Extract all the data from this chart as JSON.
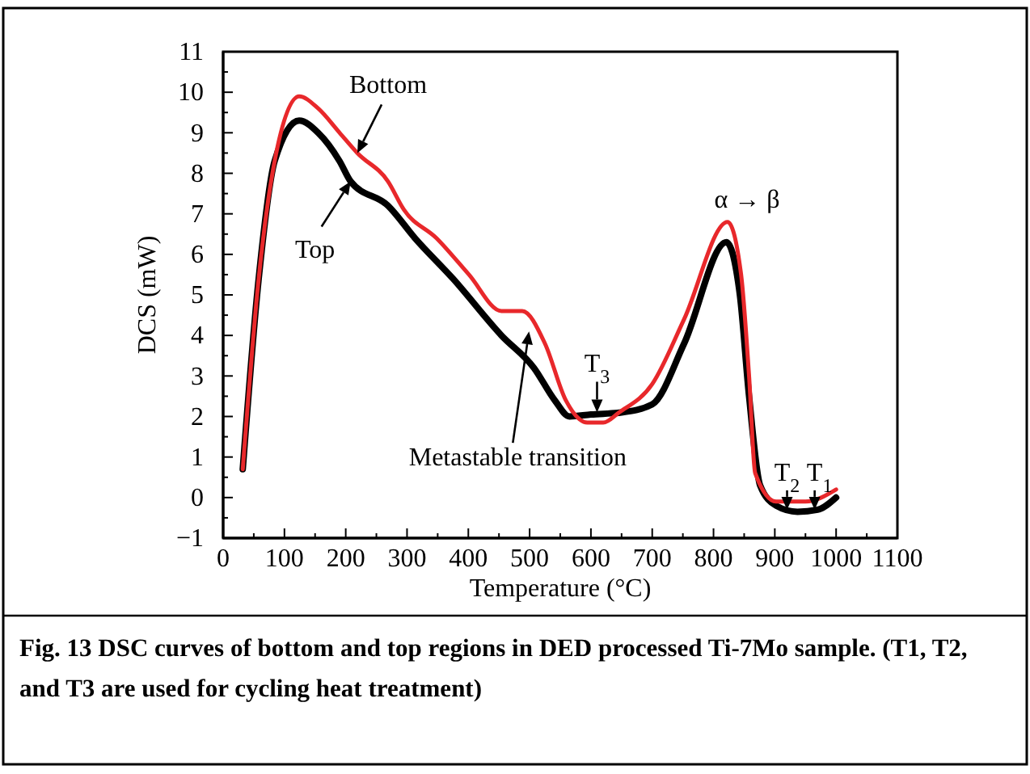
{
  "chart_data": {
    "type": "line",
    "xlabel": "Temperature (°C)",
    "ylabel": "DCS (mW)",
    "xlim": [
      0,
      1100
    ],
    "ylim": [
      -1,
      11
    ],
    "xticks": [
      0,
      {
        "value": 50,
        "label": null
      },
      100,
      {
        "value": 150,
        "label": null
      },
      200,
      {
        "value": 250,
        "label": null
      },
      300,
      {
        "value": 350,
        "label": null
      },
      400,
      {
        "value": 450,
        "label": null
      },
      500,
      {
        "value": 550,
        "label": null
      },
      600,
      {
        "value": 650,
        "label": null
      },
      700,
      {
        "value": 750,
        "label": null
      },
      800,
      {
        "value": 850,
        "label": null
      },
      900,
      {
        "value": 950,
        "label": null
      },
      1000,
      {
        "value": 1050,
        "label": null
      },
      1100
    ],
    "yticks": [
      -1,
      {
        "value": -0.5,
        "label": null
      },
      0,
      {
        "value": 0.5,
        "label": null
      },
      1,
      {
        "value": 1.5,
        "label": null
      },
      2,
      {
        "value": 2.5,
        "label": null
      },
      3,
      {
        "value": 3.5,
        "label": null
      },
      4,
      {
        "value": 4.5,
        "label": null
      },
      5,
      {
        "value": 5.5,
        "label": null
      },
      6,
      {
        "value": 6.5,
        "label": null
      },
      7,
      {
        "value": 7.5,
        "label": null
      },
      8,
      {
        "value": 8.5,
        "label": null
      },
      9,
      {
        "value": 9.5,
        "label": null
      },
      10,
      {
        "value": 10.5,
        "label": null
      },
      11
    ],
    "grid": false,
    "legend": "top left",
    "marker": "none",
    "line_style": "solid",
    "series": [
      {
        "name": "Bottom",
        "color": "#e8282b",
        "x": [
          32,
          58,
          84,
          124,
          155,
          190,
          219,
          269,
          295,
          348,
          401,
          454,
          488,
          525,
          559,
          594,
          620,
          646,
          700,
          752,
          823,
          845,
          858,
          868,
          902,
          950,
          1000
        ],
        "values": [
          0.7,
          5.4,
          8.3,
          9.9,
          9.6,
          9.0,
          8.5,
          7.8,
          7.1,
          6.4,
          5.5,
          4.6,
          4.6,
          3.8,
          2.4,
          1.85,
          1.85,
          2.1,
          2.8,
          4.4,
          6.8,
          5.5,
          3.0,
          0.6,
          -0.1,
          -0.1,
          0.2
        ]
      },
      {
        "name": "Top",
        "color": "#000000",
        "x": [
          32,
          58,
          84,
          124,
          155,
          190,
          208,
          269,
          313,
          375,
          454,
          507,
          541,
          565,
          600,
          650,
          700,
          752,
          821,
          843,
          858,
          876,
          902,
          937,
          970,
          1000
        ],
        "values": [
          0.7,
          5.4,
          8.3,
          9.3,
          9.0,
          8.3,
          7.8,
          7.2,
          6.4,
          5.4,
          4.0,
          3.2,
          2.4,
          2.0,
          2.05,
          2.1,
          2.3,
          3.8,
          6.3,
          5.0,
          2.5,
          0.3,
          -0.2,
          -0.35,
          -0.3,
          0
        ]
      }
    ],
    "annotations": [
      {
        "text": "α → β",
        "x": 823,
        "y": 6.8
      },
      {
        "text": "T$_{3}$",
        "x": 610,
        "y": 2.1
      },
      {
        "text": "Metastable transition",
        "x": 499,
        "y": 4.1
      },
      {
        "text": "T$_{2}$",
        "x": 920,
        "y": -0.3
      },
      {
        "text": "T$_{1}$",
        "x": 965,
        "y": -0.3
      },
      "Fig. 13 DSC curves of bottom and top regions in DED processed Ti-7Mo sample. (T1, T2, and T3 are used for cycling heat treatment)"
    ]
  }
}
